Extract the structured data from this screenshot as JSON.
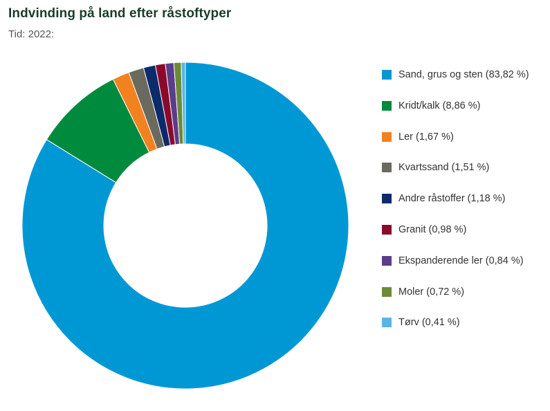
{
  "header": {
    "title": "Indvinding på land efter råstoftyper",
    "subtitle": "Tid: 2022:"
  },
  "chart_data": {
    "type": "pie",
    "variant": "donut",
    "title": "Indvinding på land efter råstoftyper",
    "subtitle": "Tid: 2022:",
    "legend_position": "right",
    "unit": "%",
    "slices": [
      {
        "label": "Sand, grus og sten (83,82 %)",
        "name": "Sand, grus og sten",
        "value": 83.82,
        "color": "#0098d4"
      },
      {
        "label": "Kridt/kalk (8,86 %)",
        "name": "Kridt/kalk",
        "value": 8.86,
        "color": "#008a3e"
      },
      {
        "label": "Ler (1,67 %)",
        "name": "Ler",
        "value": 1.67,
        "color": "#f28220"
      },
      {
        "label": "Kvartssand (1,51 %)",
        "name": "Kvartssand",
        "value": 1.51,
        "color": "#6b6a5e"
      },
      {
        "label": "Andre råstoffer (1,18 %)",
        "name": "Andre råstoffer",
        "value": 1.18,
        "color": "#0b2b6b"
      },
      {
        "label": "Granit (0,98 %)",
        "name": "Granit",
        "value": 0.98,
        "color": "#8b0a2c"
      },
      {
        "label": "Ekspanderende ler (0,84 %)",
        "name": "Ekspanderende ler",
        "value": 0.84,
        "color": "#5a3d8a"
      },
      {
        "label": "Moler (0,72 %)",
        "name": "Moler",
        "value": 0.72,
        "color": "#6b8a35"
      },
      {
        "label": "Tørv (0,41 %)",
        "name": "Tørv",
        "value": 0.41,
        "color": "#5ab4e6"
      }
    ]
  }
}
